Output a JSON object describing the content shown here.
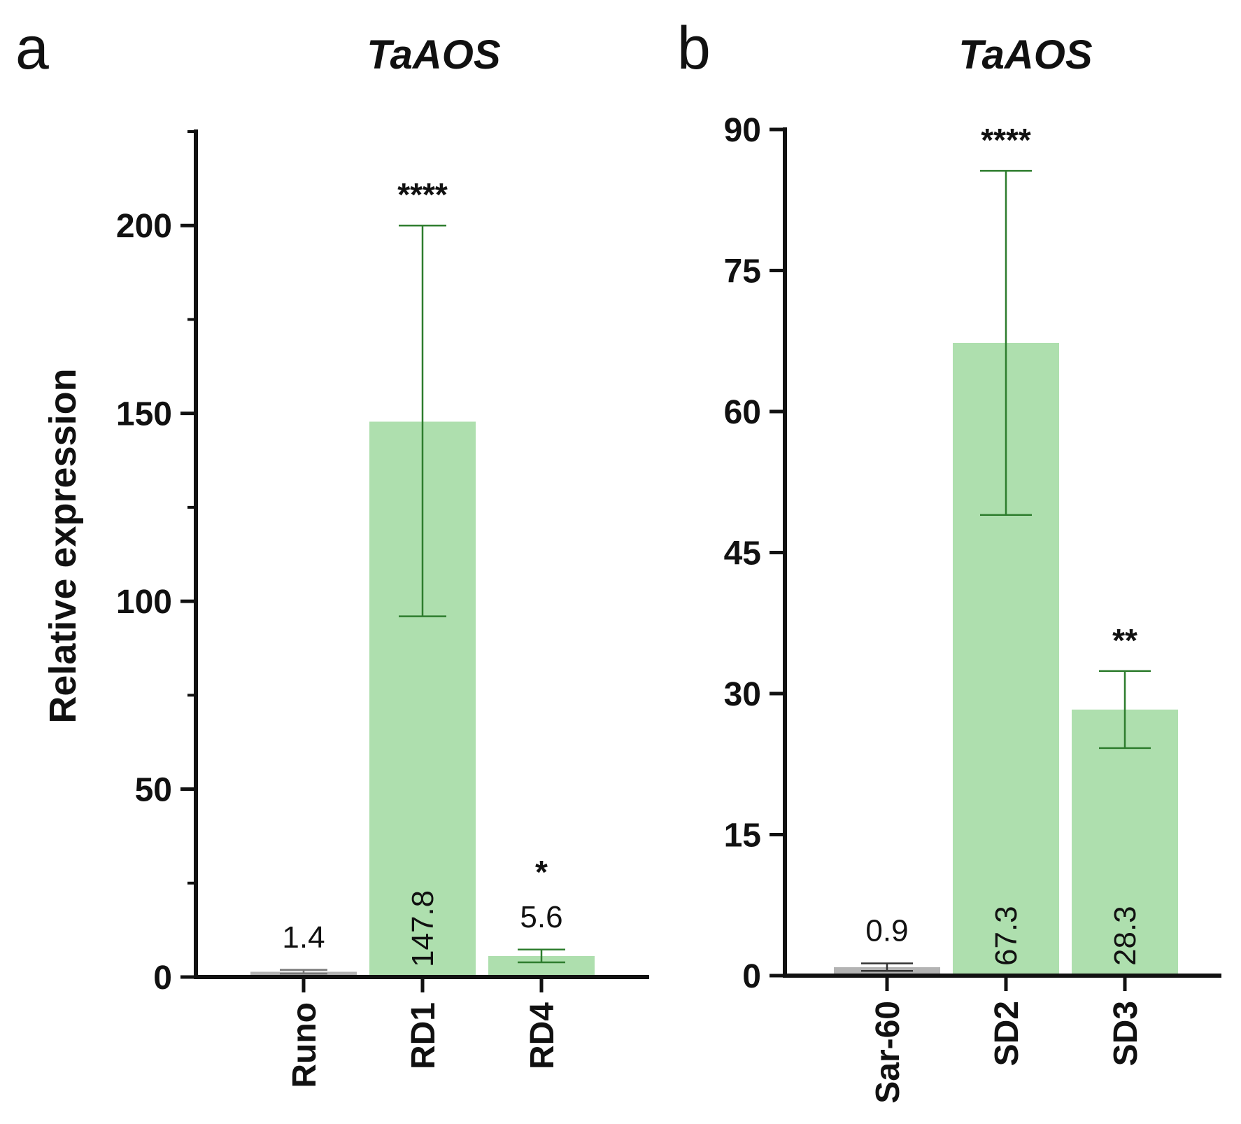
{
  "chart_data": [
    {
      "panel": "a",
      "type": "bar",
      "title": "TaAOS",
      "ylabel": "Relative expression",
      "xlabel": "",
      "ylim": [
        0,
        225
      ],
      "yticks": [
        0,
        50,
        100,
        150,
        200
      ],
      "ytick_labels": [
        "0",
        "50",
        "100",
        "150",
        "200"
      ],
      "minor_yticks": [
        25,
        75,
        125,
        175,
        225
      ],
      "categories": [
        "Runo",
        "RD1",
        "RD4"
      ],
      "values": [
        1.4,
        147.8,
        5.6
      ],
      "value_labels": [
        "1.4",
        "147.8",
        "5.6"
      ],
      "error_low": [
        0.9,
        96,
        3.9
      ],
      "error_high": [
        1.9,
        200,
        7.3
      ],
      "significance": [
        "",
        "****",
        "*"
      ],
      "bar_colors": [
        "#b3b3b3",
        "#aedfae",
        "#aedfae"
      ],
      "error_colors": [
        "#777777",
        "#2e7d2e",
        "#2e7d2e"
      ]
    },
    {
      "panel": "b",
      "type": "bar",
      "title": "TaAOS",
      "ylabel": "",
      "xlabel": "",
      "ylim": [
        0,
        90
      ],
      "yticks": [
        0,
        15,
        30,
        45,
        60,
        75,
        90
      ],
      "ytick_labels": [
        "0",
        "15",
        "30",
        "45",
        "60",
        "75",
        "90"
      ],
      "minor_yticks": [],
      "categories": [
        "Sar-60",
        "SD2",
        "SD3"
      ],
      "values": [
        0.9,
        67.3,
        28.3
      ],
      "value_labels": [
        "0.9",
        "67.3",
        "28.3"
      ],
      "error_low": [
        0.5,
        49,
        24.2
      ],
      "error_high": [
        1.3,
        85.6,
        32.4
      ],
      "significance": [
        "",
        "****",
        "**"
      ],
      "bar_colors": [
        "#b3b3b3",
        "#aedfae",
        "#aedfae"
      ],
      "error_colors": [
        "#333333",
        "#2e7d2e",
        "#2e7d2e"
      ]
    }
  ]
}
